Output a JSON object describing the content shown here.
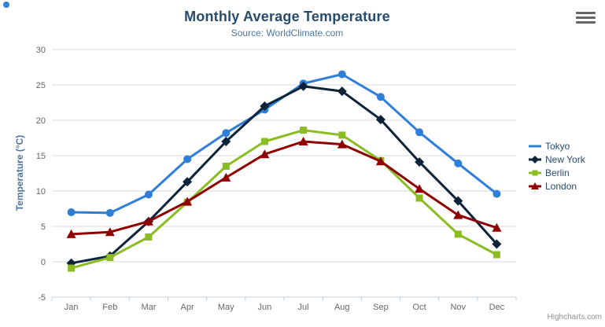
{
  "header": {
    "title": "Monthly Average Temperature",
    "subtitle": "Source: WorldClimate.com"
  },
  "menu": {
    "icon": "hamburger-menu-icon"
  },
  "credits": {
    "label": "Highcharts.com"
  },
  "chart_data": {
    "type": "line",
    "title": "Monthly Average Temperature",
    "subtitle": "Source: WorldClimate.com",
    "categories": [
      "Jan",
      "Feb",
      "Mar",
      "Apr",
      "May",
      "Jun",
      "Jul",
      "Aug",
      "Sep",
      "Oct",
      "Nov",
      "Dec"
    ],
    "series": [
      {
        "name": "Tokyo",
        "color": "#2f7ed8",
        "marker": "circle",
        "values": [
          7.0,
          6.9,
          9.5,
          14.5,
          18.2,
          21.5,
          25.2,
          26.5,
          23.3,
          18.3,
          13.9,
          9.6
        ]
      },
      {
        "name": "New York",
        "color": "#0d233a",
        "marker": "diamond",
        "values": [
          -0.2,
          0.8,
          5.7,
          11.3,
          17.0,
          22.0,
          24.8,
          24.1,
          20.1,
          14.1,
          8.6,
          2.5
        ]
      },
      {
        "name": "Berlin",
        "color": "#8bbc21",
        "marker": "square",
        "values": [
          -0.9,
          0.6,
          3.5,
          8.4,
          13.5,
          17.0,
          18.6,
          17.9,
          14.3,
          9.0,
          3.9,
          1.0
        ]
      },
      {
        "name": "London",
        "color": "#910000",
        "marker": "triangle",
        "values": [
          3.9,
          4.2,
          5.7,
          8.5,
          11.9,
          15.2,
          17.0,
          16.6,
          14.2,
          10.3,
          6.6,
          4.8
        ]
      }
    ],
    "xlabel": "",
    "ylabel": "Temperature (°C)",
    "ylim": [
      -5,
      30
    ],
    "ytick_step": 5,
    "yticks": [
      -5,
      0,
      5,
      10,
      15,
      20,
      25,
      30
    ],
    "grid": true,
    "legend_position": "right"
  },
  "colors": {
    "title": "#274b6d",
    "subtitle": "#4d759e",
    "axis_title": "#4d759e",
    "tick_label": "#666666",
    "gridline": "#d8d8d8",
    "axis_line": "#c0d0e0",
    "legend_text": "#274b6d",
    "credits": "#909090",
    "menu_icon": "#666666"
  }
}
